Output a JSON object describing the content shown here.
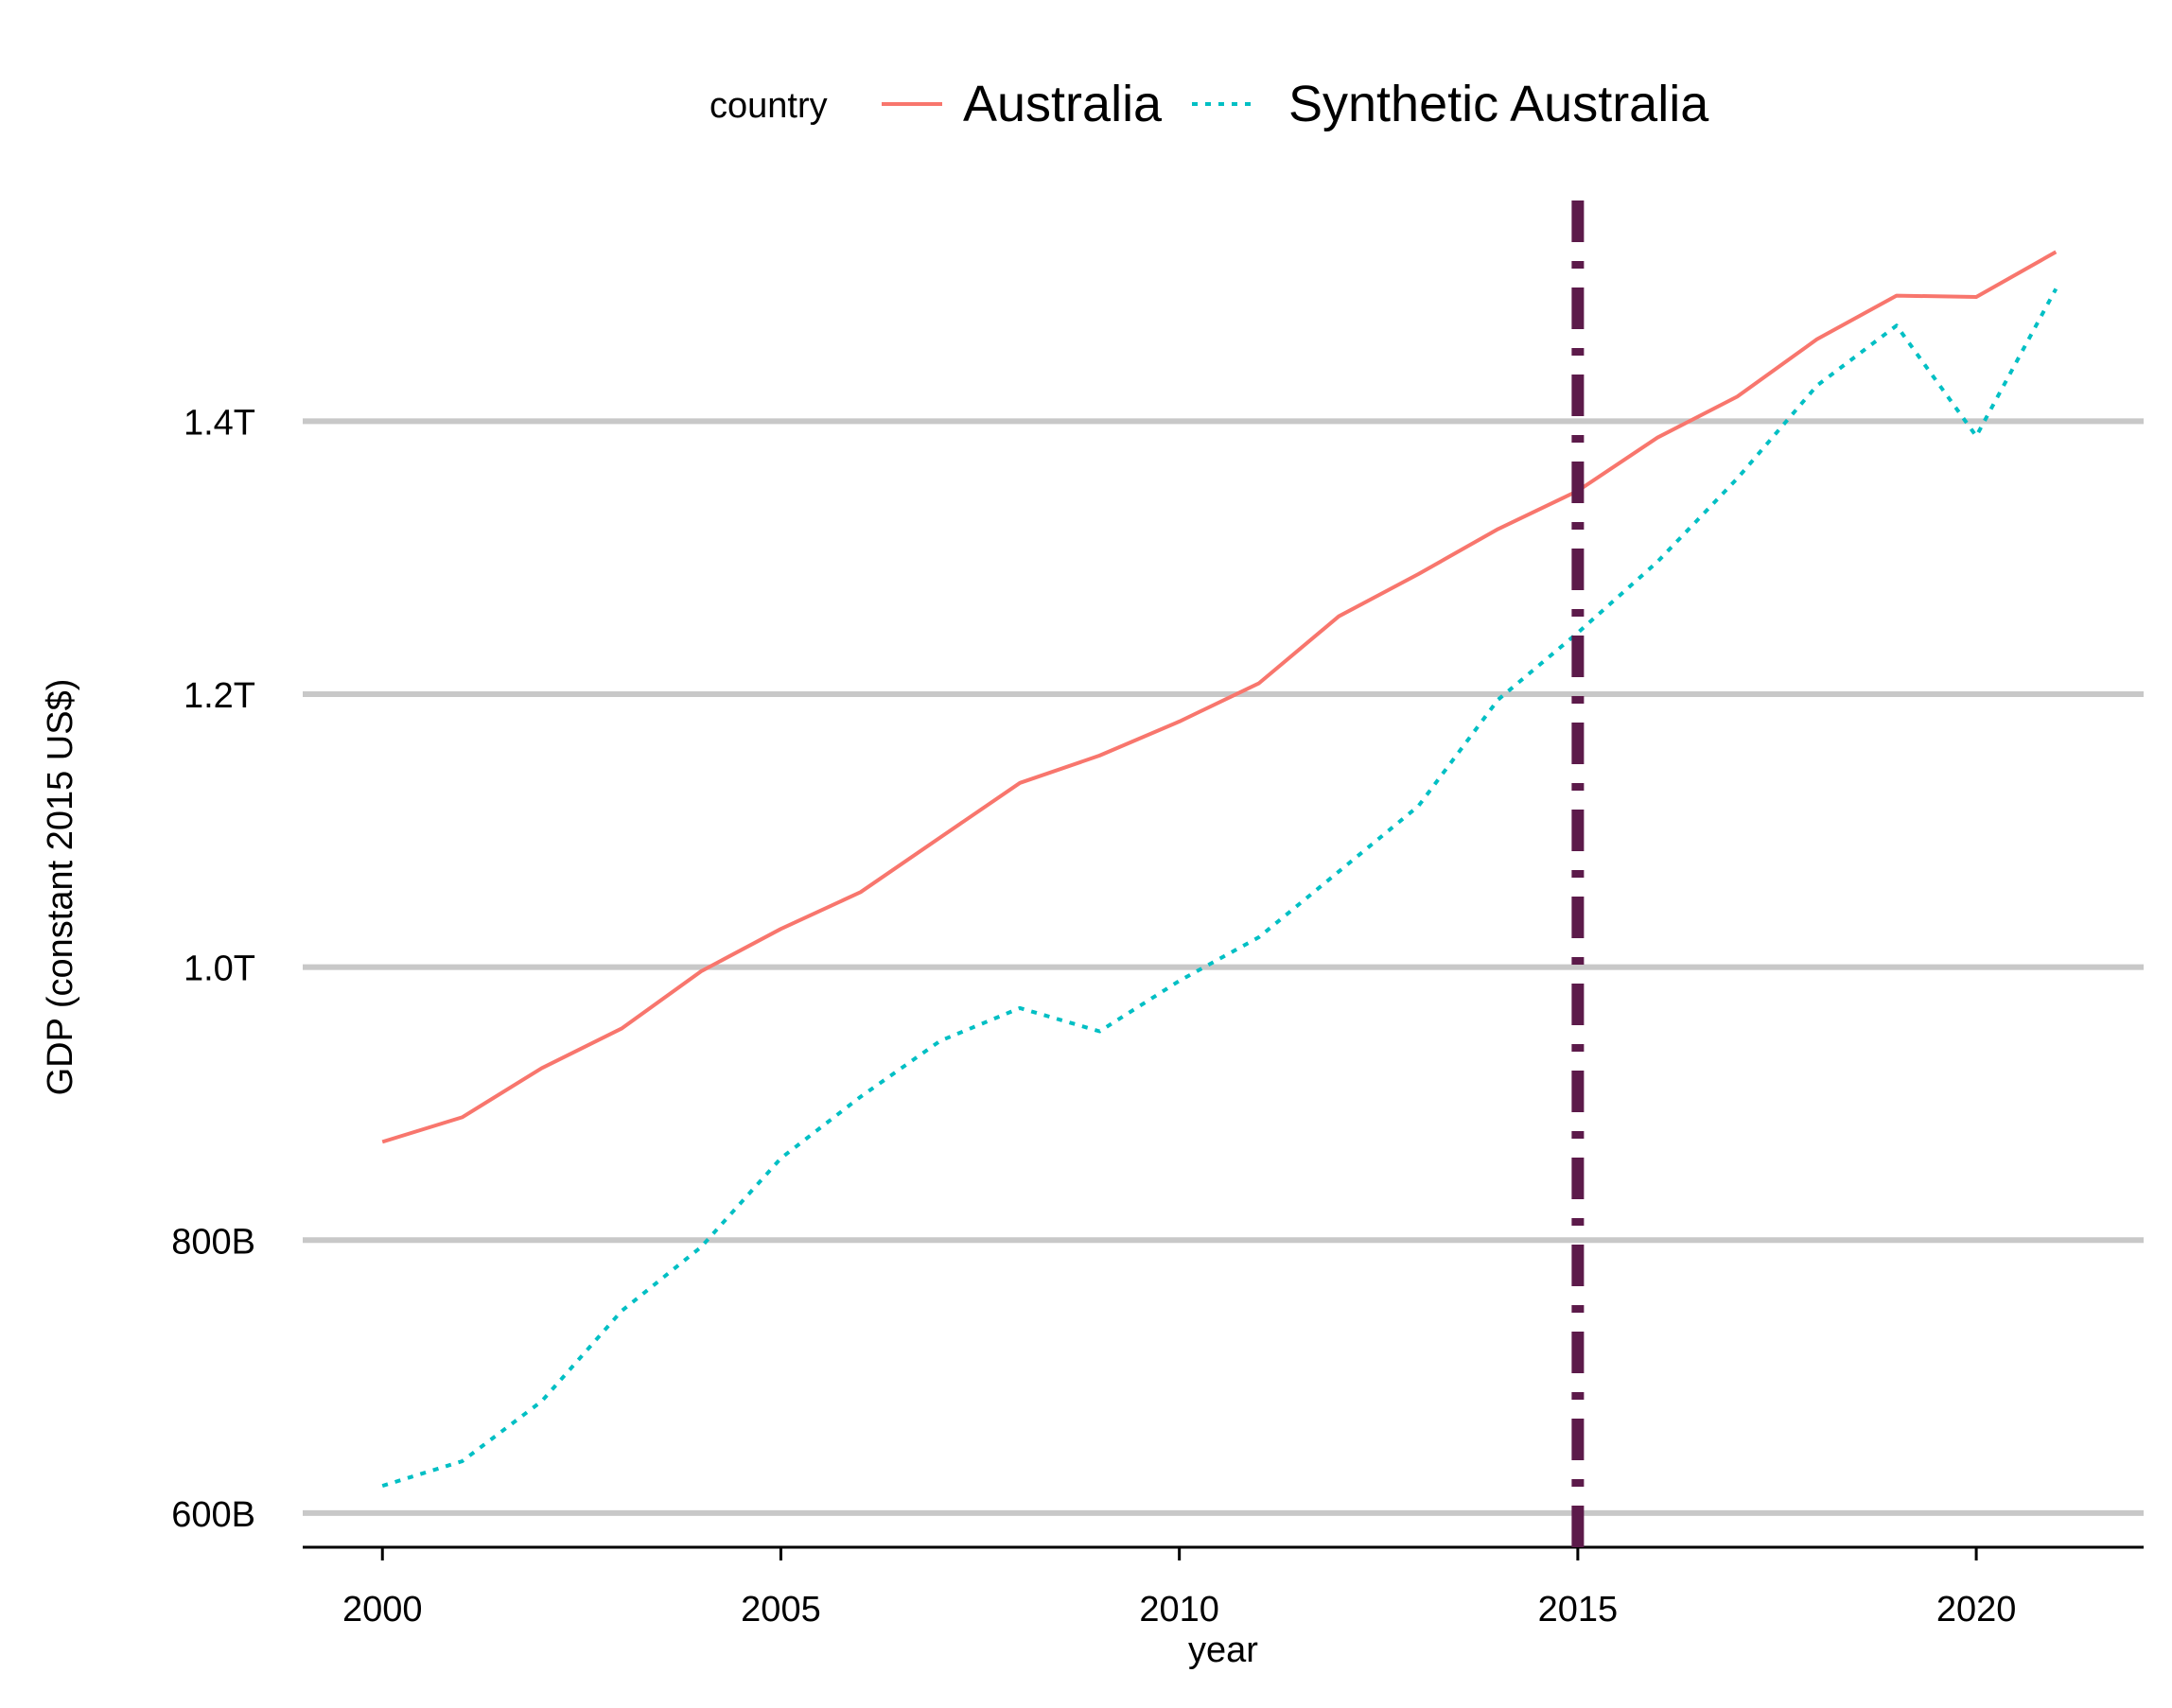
{
  "chart_data": {
    "type": "line",
    "title": "",
    "xlabel": "year",
    "ylabel": "GDP (constant 2015 US$)",
    "xlim": [
      1999,
      2022.1
    ],
    "ylim": [
      575000000000,
      1570000000000
    ],
    "x_ticks": [
      2000,
      2005,
      2010,
      2015,
      2020
    ],
    "x_tick_labels": [
      "2000",
      "2005",
      "2010",
      "2015",
      "2020"
    ],
    "y_ticks": [
      600000000000,
      800000000000,
      1000000000000,
      1200000000000,
      1400000000000
    ],
    "y_tick_labels": [
      "600B",
      "800B",
      "1.0T",
      "1.2T",
      "1.4T"
    ],
    "grid": "horizontal major gridlines",
    "legend": {
      "title": "country",
      "position": "top"
    },
    "x": [
      2000,
      2001,
      2002,
      2003,
      2004,
      2005,
      2006,
      2007,
      2008,
      2009,
      2010,
      2011,
      2012,
      2013,
      2014,
      2015,
      2016,
      2017,
      2018,
      2019,
      2020,
      2021
    ],
    "series": [
      {
        "name": "Australia",
        "color": "#F8766D",
        "linestyle": "solid",
        "values": [
          872000000000,
          890000000000,
          926000000000,
          955000000000,
          997000000000,
          1028000000000,
          1055000000000,
          1095000000000,
          1135000000000,
          1155000000000,
          1180000000000,
          1208000000000,
          1257000000000,
          1288000000000,
          1321000000000,
          1349000000000,
          1388000000000,
          1418000000000,
          1460000000000,
          1492000000000,
          1491000000000,
          1524000000000
        ]
      },
      {
        "name": "Synthetic Australia",
        "color": "#00BFC4",
        "linestyle": "dotted",
        "values": [
          620000000000,
          638000000000,
          682000000000,
          748000000000,
          795000000000,
          860000000000,
          905000000000,
          946000000000,
          970000000000,
          953000000000,
          990000000000,
          1022000000000,
          1070000000000,
          1118000000000,
          1196000000000,
          1245000000000,
          1297000000000,
          1358000000000,
          1426000000000,
          1470000000000,
          1389000000000,
          1497000000000
        ]
      }
    ],
    "annotations": [
      {
        "type": "vline",
        "x": 2015,
        "color": "#5C1A4A",
        "linestyle": "dashdot"
      }
    ]
  }
}
